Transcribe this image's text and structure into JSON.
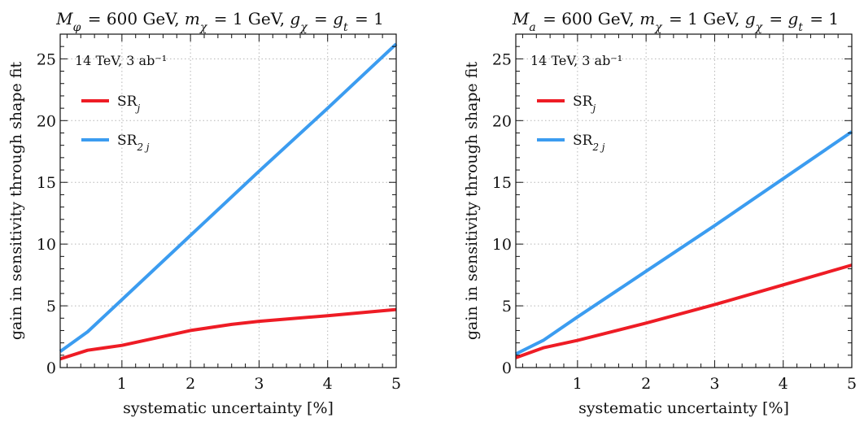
{
  "chart_data": [
    {
      "type": "line",
      "title": "M_φ = 600 GeV, m_χ = 1 GeV, g_χ = g_t = 1",
      "xlabel": "systematic uncertainty  [%]",
      "ylabel": "gain in sensitivity through shape fit",
      "annotation": "14 TeV, 3 ab⁻¹",
      "xlim": [
        0.1,
        5
      ],
      "ylim": [
        0,
        27
      ],
      "x_ticks": [
        1,
        2,
        3,
        4,
        5
      ],
      "y_ticks": [
        0,
        5,
        10,
        15,
        20,
        25
      ],
      "grid": true,
      "legend_position": "top-left",
      "series": [
        {
          "name": "SR_j",
          "color": "#ee1c25",
          "x": [
            0.1,
            0.5,
            1,
            1.5,
            2,
            2.6,
            3,
            4,
            5
          ],
          "y": [
            0.7,
            1.4,
            1.8,
            2.4,
            3.0,
            3.5,
            3.75,
            4.2,
            4.7
          ]
        },
        {
          "name": "SR_2j",
          "color": "#3b9cf0",
          "x": [
            0.1,
            0.5,
            1,
            2,
            3,
            4,
            5
          ],
          "y": [
            1.3,
            2.9,
            5.5,
            10.7,
            15.9,
            21.0,
            26.2
          ]
        }
      ]
    },
    {
      "type": "line",
      "title": "M_a = 600 GeV, m_χ = 1 GeV, g_χ = g_t = 1",
      "xlabel": "systematic uncertainty  [%]",
      "ylabel": "gain in sensitivity through shape fit",
      "annotation": "14 TeV, 3 ab⁻¹",
      "xlim": [
        0.1,
        5
      ],
      "ylim": [
        0,
        27
      ],
      "x_ticks": [
        1,
        2,
        3,
        4,
        5
      ],
      "y_ticks": [
        0,
        5,
        10,
        15,
        20,
        25
      ],
      "grid": true,
      "legend_position": "top-left",
      "series": [
        {
          "name": "SR_j",
          "color": "#ee1c25",
          "x": [
            0.1,
            0.5,
            1,
            2,
            3,
            4,
            5
          ],
          "y": [
            0.8,
            1.6,
            2.2,
            3.6,
            5.1,
            6.7,
            8.3
          ]
        },
        {
          "name": "SR_2j",
          "color": "#3b9cf0",
          "x": [
            0.1,
            0.5,
            1,
            2,
            3,
            4,
            5
          ],
          "y": [
            1.1,
            2.2,
            4.1,
            7.8,
            11.5,
            15.3,
            19.1
          ]
        }
      ]
    }
  ]
}
